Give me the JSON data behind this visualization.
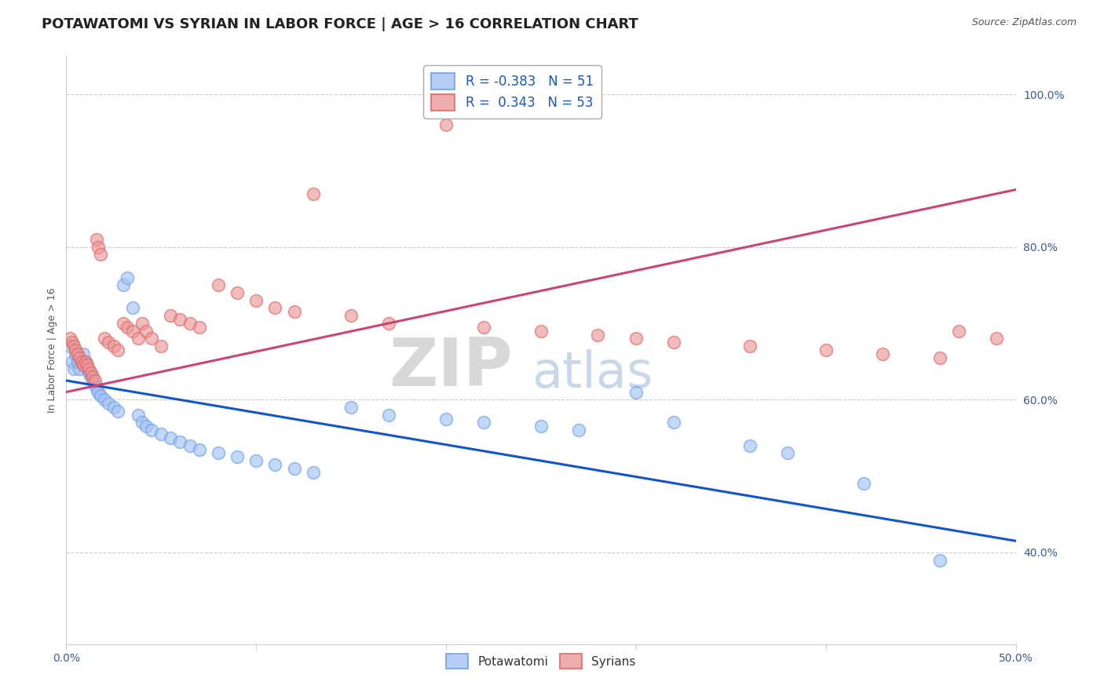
{
  "title": "POTAWATOMI VS SYRIAN IN LABOR FORCE | AGE > 16 CORRELATION CHART",
  "source_text": "Source: ZipAtlas.com",
  "ylabel": "In Labor Force | Age > 16",
  "xlim": [
    0.0,
    0.5
  ],
  "ylim": [
    0.28,
    1.05
  ],
  "xticks": [
    0.0,
    0.1,
    0.2,
    0.3,
    0.4,
    0.5
  ],
  "xticklabels": [
    "0.0%",
    "",
    "",
    "",
    "",
    "50.0%"
  ],
  "ytick_positions": [
    0.4,
    0.6,
    0.8,
    1.0
  ],
  "ytick_labels": [
    "40.0%",
    "60.0%",
    "80.0%",
    "100.0%"
  ],
  "potawatomi_R": -0.383,
  "potawatomi_N": 51,
  "syrian_R": 0.343,
  "syrian_N": 53,
  "potawatomi_color": "#a4c2f4",
  "potawatomi_edge_color": "#6d9eeb",
  "syrian_color": "#ea9999",
  "syrian_edge_color": "#e06666",
  "potawatomi_line_color": "#1155cc",
  "syrian_line_color": "#cc4477",
  "background_color": "#ffffff",
  "grid_color": "#cccccc",
  "title_fontsize": 13,
  "axis_label_fontsize": 9,
  "tick_fontsize": 10,
  "legend_fontsize": 12,
  "potawatomi_x": [
    0.002,
    0.003,
    0.004,
    0.005,
    0.006,
    0.007,
    0.008,
    0.009,
    0.01,
    0.011,
    0.012,
    0.013,
    0.014,
    0.015,
    0.016,
    0.017,
    0.018,
    0.02,
    0.022,
    0.025,
    0.027,
    0.03,
    0.032,
    0.035,
    0.038,
    0.04,
    0.042,
    0.045,
    0.05,
    0.055,
    0.06,
    0.065,
    0.07,
    0.08,
    0.09,
    0.1,
    0.11,
    0.12,
    0.13,
    0.15,
    0.17,
    0.2,
    0.22,
    0.25,
    0.27,
    0.3,
    0.32,
    0.36,
    0.38,
    0.42,
    0.46
  ],
  "potawatomi_y": [
    0.67,
    0.65,
    0.64,
    0.66,
    0.65,
    0.64,
    0.65,
    0.66,
    0.65,
    0.64,
    0.635,
    0.63,
    0.625,
    0.62,
    0.615,
    0.61,
    0.605,
    0.6,
    0.595,
    0.59,
    0.585,
    0.75,
    0.76,
    0.72,
    0.58,
    0.57,
    0.565,
    0.56,
    0.555,
    0.55,
    0.545,
    0.54,
    0.535,
    0.53,
    0.525,
    0.52,
    0.515,
    0.51,
    0.505,
    0.59,
    0.58,
    0.575,
    0.57,
    0.565,
    0.56,
    0.61,
    0.57,
    0.54,
    0.53,
    0.49,
    0.39
  ],
  "syrian_x": [
    0.002,
    0.003,
    0.004,
    0.005,
    0.006,
    0.007,
    0.008,
    0.009,
    0.01,
    0.011,
    0.012,
    0.013,
    0.014,
    0.015,
    0.016,
    0.017,
    0.018,
    0.02,
    0.022,
    0.025,
    0.027,
    0.03,
    0.032,
    0.035,
    0.038,
    0.04,
    0.042,
    0.045,
    0.05,
    0.055,
    0.06,
    0.065,
    0.07,
    0.08,
    0.09,
    0.1,
    0.11,
    0.12,
    0.13,
    0.15,
    0.17,
    0.2,
    0.22,
    0.25,
    0.28,
    0.3,
    0.32,
    0.36,
    0.4,
    0.43,
    0.46,
    0.47,
    0.49
  ],
  "syrian_y": [
    0.68,
    0.675,
    0.67,
    0.665,
    0.66,
    0.655,
    0.65,
    0.645,
    0.65,
    0.645,
    0.64,
    0.635,
    0.63,
    0.625,
    0.81,
    0.8,
    0.79,
    0.68,
    0.675,
    0.67,
    0.665,
    0.7,
    0.695,
    0.69,
    0.68,
    0.7,
    0.69,
    0.68,
    0.67,
    0.71,
    0.705,
    0.7,
    0.695,
    0.75,
    0.74,
    0.73,
    0.72,
    0.715,
    0.87,
    0.71,
    0.7,
    0.96,
    0.695,
    0.69,
    0.685,
    0.68,
    0.675,
    0.67,
    0.665,
    0.66,
    0.655,
    0.69,
    0.68
  ]
}
